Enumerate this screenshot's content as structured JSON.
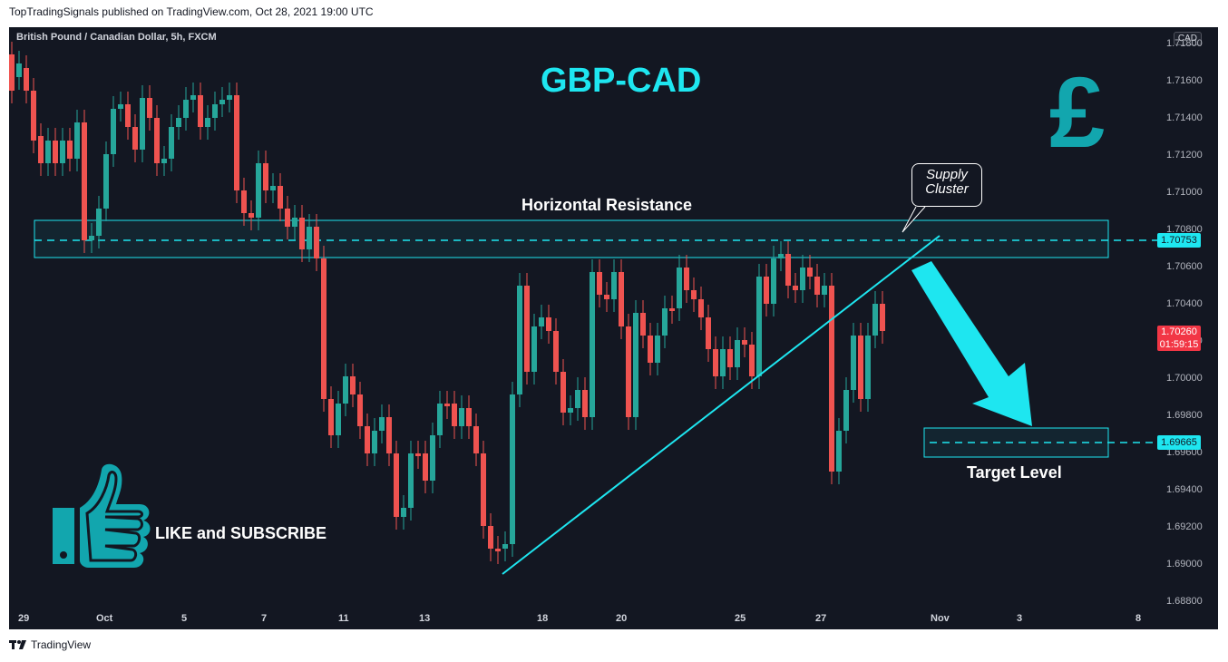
{
  "header": {
    "published": "TopTradingSignals published on TradingView.com, Oct 28, 2021 19:00 UTC"
  },
  "chart": {
    "symbol": "British Pound / Canadian Dollar, 5h, FXCM",
    "currency": "CAD",
    "title": "GBP-CAD",
    "pound_symbol": "£",
    "resistance_label": "Horizontal Resistance",
    "supply_label_line1": "Supply",
    "supply_label_line2": "Cluster",
    "target_label": "Target Level",
    "cta": "LIKE and SUBSCRIBE",
    "resistance_price": "1.70753",
    "target_price": "1.69665",
    "last_price": "1.70260",
    "countdown": "01:59:15",
    "price_labels": [
      "1.71800",
      "1.71600",
      "1.71400",
      "1.71200",
      "1.71000",
      "1.70800",
      "1.70600",
      "1.70400",
      "1.70200",
      "1.70000",
      "1.69800",
      "1.69600",
      "1.69400",
      "1.69200",
      "1.69000",
      "1.68800"
    ],
    "date_labels": [
      "29",
      "Oct",
      "5",
      "7",
      "11",
      "13",
      "18",
      "20",
      "25",
      "27",
      "Nov",
      "3",
      "8"
    ],
    "colors": {
      "bull": "#26a69a",
      "bear": "#ef5350",
      "accent": "#1ee6f0",
      "background": "#131722"
    }
  },
  "footer": {
    "brand": "TradingView"
  }
}
